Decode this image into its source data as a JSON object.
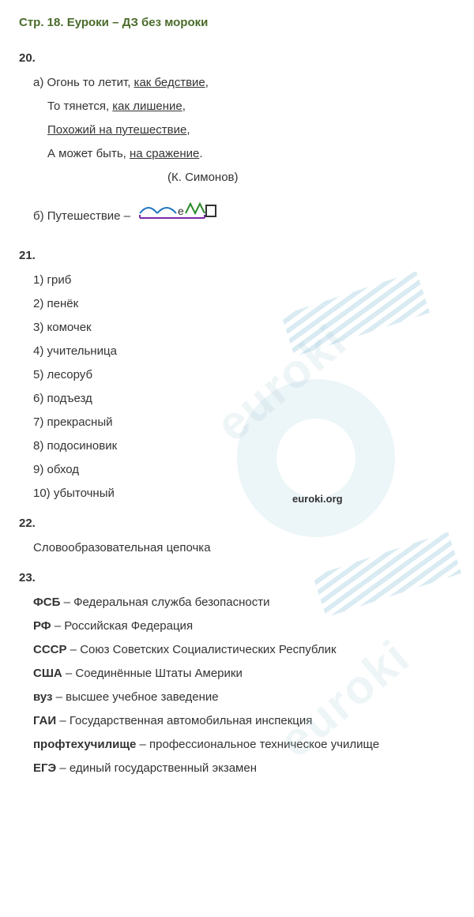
{
  "title": "Стр. 18. Еуроки – ДЗ без мороки",
  "task20": {
    "num": "20.",
    "a_label": "а) ",
    "a1_pre": "Огонь то летит, ",
    "a1_u": "как бедствие",
    "a1_post": ",",
    "a2_pre": "То тянется, ",
    "a2_u": "как лишение",
    "a2_post": ",",
    "a3_u": "Похожий на путешествие",
    "a3_post": ",",
    "a4_pre": "А может быть, ",
    "a4_u": "на сражение",
    "a4_post": ".",
    "attribution": "(К. Симонов)",
    "b_label": "б) Путешествие – ",
    "morph_e": "е"
  },
  "task21": {
    "num": "21.",
    "items": [
      "1) гриб",
      "2) пенёк",
      "3) комочек",
      "4) учительница",
      "5) лесоруб",
      "6) подъезд",
      "7) прекрасный",
      "8) подосиновик",
      "9) обход",
      "10) убыточный"
    ]
  },
  "task22": {
    "num": "22.",
    "text": "Словообразовательная цепочка"
  },
  "task23": {
    "num": "23.",
    "rows": [
      {
        "abbr": "ФСБ",
        "sep": " – ",
        "full": "Федеральная служба безопасности"
      },
      {
        "abbr": "РФ",
        "sep": " – ",
        "full": "Российская Федерация"
      },
      {
        "abbr": "СССР",
        "sep": " – ",
        "full": "Союз Советских Социалистических Республик"
      },
      {
        "abbr": "США",
        "sep": " – ",
        "full": "Соединённые Штаты Америки"
      },
      {
        "abbr": "вуз",
        "sep": " – ",
        "full": "высшее учебное заведение"
      },
      {
        "abbr": "ГАИ",
        "sep": " – ",
        "full": "Государственная автомобильная инспекция"
      },
      {
        "abbr": "профтехучилище",
        "sep": " – ",
        "full": "профессиональное техническое училище"
      },
      {
        "abbr": "ЕГЭ",
        "sep": " – ",
        "full": "единый государственный экзамен"
      }
    ]
  },
  "watermark": {
    "url": "euroki.org",
    "text": "euroki",
    "colors": {
      "circle": "rgba(200,225,235,0.35)",
      "stripe": "rgba(180,215,230,0.5)"
    }
  }
}
